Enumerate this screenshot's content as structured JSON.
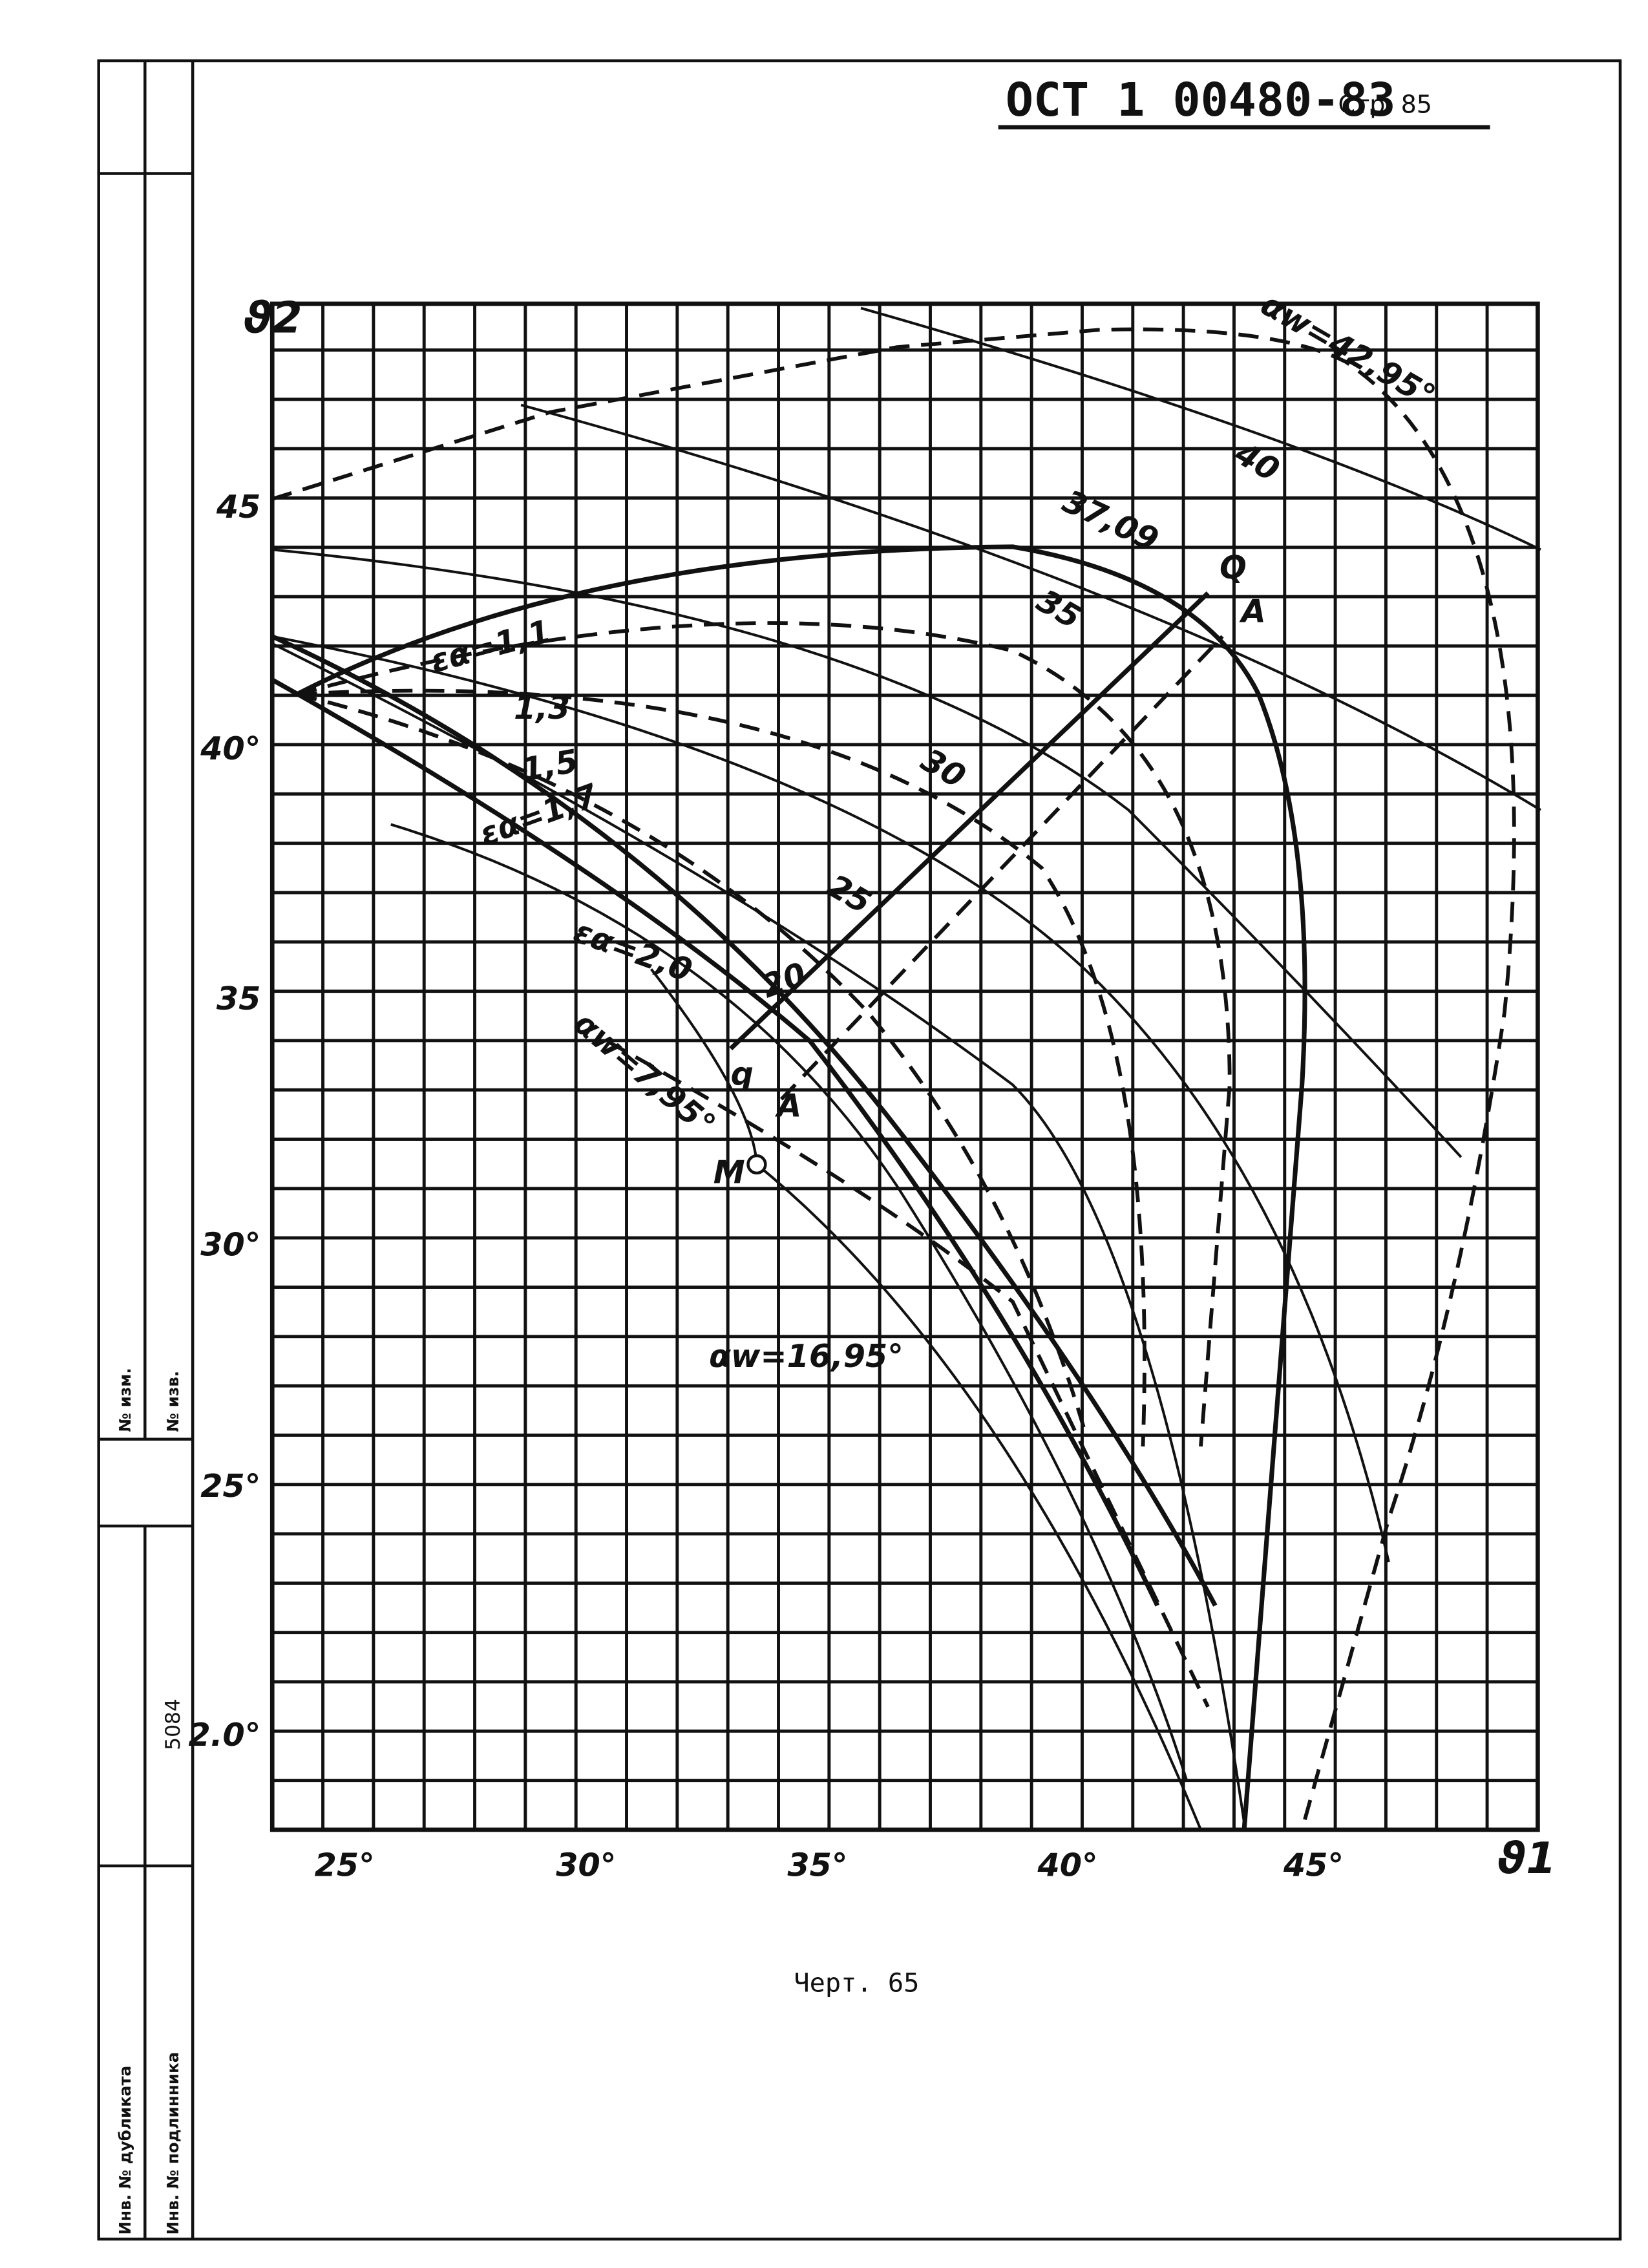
{
  "header": {
    "title": "ОСТ 1 00480-83",
    "page": "Стр. 85"
  },
  "axes": {
    "y_label": "ϑ2",
    "x_label": "ϑ1",
    "y_ticks": [
      "45",
      "40°",
      "35",
      "30°",
      "25°",
      "2.0°"
    ],
    "x_ticks": [
      "25°",
      "30°",
      "35°",
      "40°",
      "45°"
    ]
  },
  "curve_labels": [
    "αw=42,95°",
    "40",
    "37,09",
    "35",
    "30",
    "25",
    "20",
    "εα=1,1",
    "1,3",
    "1,5",
    "εα=1,7",
    "εα=2,0",
    "αw=7,95°",
    "αw=16,95°",
    "Q",
    "A",
    "q",
    "A",
    "M"
  ],
  "caption": "Черт. 65",
  "stamp": {
    "change_no": "№ изм.",
    "notice_no": "№ изв.",
    "number": "5084",
    "dup_inv": "Инв. № дубликата",
    "orig_inv": "Инв. № подлинника"
  }
}
